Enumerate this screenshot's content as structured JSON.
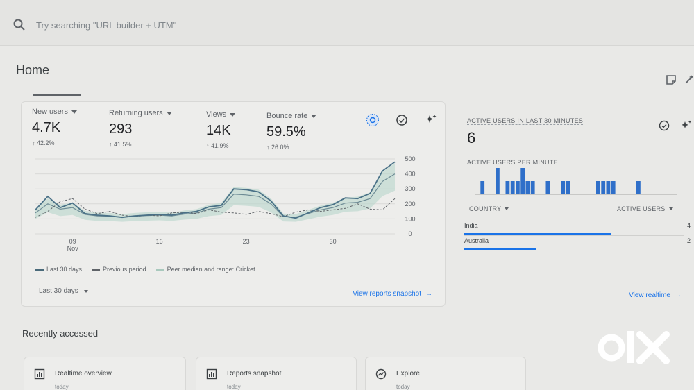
{
  "search": {
    "placeholder": "Try searching \"URL builder + UTM\""
  },
  "page": {
    "title": "Home"
  },
  "metrics": [
    {
      "label": "New users",
      "value": "4.7K",
      "change": "↑ 42.2%"
    },
    {
      "label": "Returning users",
      "value": "293",
      "change": "↑ 41.5%"
    },
    {
      "label": "Views",
      "value": "14K",
      "change": "↑ 41.9%"
    },
    {
      "label": "Bounce rate",
      "value": "59.5%",
      "change": "↑ 26.0%"
    }
  ],
  "chart_data": {
    "type": "line",
    "x": [
      "Nov 6",
      "Nov 7",
      "Nov 8",
      "Nov 9",
      "Nov 10",
      "Nov 11",
      "Nov 12",
      "Nov 13",
      "Nov 14",
      "Nov 15",
      "Nov 16",
      "Nov 17",
      "Nov 18",
      "Nov 19",
      "Nov 20",
      "Nov 21",
      "Nov 22",
      "Nov 23",
      "Nov 24",
      "Nov 25",
      "Nov 26",
      "Nov 27",
      "Nov 28",
      "Nov 29",
      "Nov 30",
      "Dec 1",
      "Dec 2",
      "Dec 3",
      "Dec 4",
      "Dec 5"
    ],
    "x_ticks": [
      {
        "label": "09",
        "sub": "Nov",
        "index": 3
      },
      {
        "label": "16",
        "sub": "",
        "index": 10
      },
      {
        "label": "23",
        "sub": "",
        "index": 17
      },
      {
        "label": "30",
        "sub": "",
        "index": 24
      }
    ],
    "y_ticks": [
      "0",
      "100",
      "200",
      "300",
      "400",
      "500"
    ],
    "ylim": [
      0,
      500
    ],
    "series": [
      {
        "name": "Last 30 days",
        "values": [
          160,
          250,
          175,
          205,
          135,
          125,
          120,
          110,
          120,
          125,
          130,
          125,
          140,
          150,
          180,
          190,
          300,
          295,
          280,
          220,
          120,
          105,
          140,
          175,
          195,
          240,
          235,
          270,
          420,
          480
        ]
      },
      {
        "name": "Previous period",
        "values": [
          110,
          150,
          215,
          235,
          165,
          135,
          150,
          125,
          115,
          125,
          120,
          140,
          145,
          135,
          160,
          145,
          140,
          130,
          150,
          135,
          115,
          145,
          160,
          150,
          160,
          170,
          200,
          165,
          160,
          235
        ]
      },
      {
        "name": "Peer median and range: Cricket",
        "values": [
          140,
          200,
          165,
          175,
          130,
          120,
          118,
          112,
          118,
          122,
          125,
          120,
          132,
          140,
          165,
          175,
          265,
          260,
          250,
          200,
          115,
          112,
          135,
          160,
          175,
          205,
          210,
          235,
          350,
          400
        ]
      }
    ]
  },
  "legend": [
    "Last 30 days",
    "Previous period",
    "Peer median and range: Cricket"
  ],
  "date_range": {
    "label": "Last 30 days"
  },
  "links": {
    "view_reports": "View reports snapshot",
    "view_realtime": "View realtime"
  },
  "realtime": {
    "title": "ACTIVE USERS IN LAST 30 MINUTES",
    "value": "6",
    "per_minute_label": "ACTIVE USERS PER MINUTE",
    "per_minute": [
      0,
      1,
      0,
      0,
      2,
      0,
      1,
      1,
      1,
      2,
      1,
      1,
      0,
      0,
      1,
      0,
      0,
      1,
      1,
      0,
      0,
      0,
      0,
      0,
      1,
      1,
      1,
      1,
      0,
      0,
      0,
      0,
      1,
      0,
      0,
      0,
      0,
      0,
      0,
      0
    ],
    "col_country": "COUNTRY",
    "col_users": "ACTIVE USERS",
    "rows": [
      {
        "country": "India",
        "users": "4",
        "share": 0.67
      },
      {
        "country": "Australia",
        "users": "2",
        "share": 0.33
      }
    ]
  },
  "recent": {
    "title": "Recently accessed",
    "items": [
      {
        "title": "Realtime overview",
        "sub": "today"
      },
      {
        "title": "Reports snapshot",
        "sub": "today"
      },
      {
        "title": "Explore",
        "sub": "today"
      }
    ]
  },
  "watermark": {
    "text": "OLX"
  },
  "colors": {
    "primary_line": "#4a7187",
    "peer_band": "#b8d6cb",
    "bar_blue": "#2f6fc9",
    "link_blue": "#1a73e8"
  }
}
